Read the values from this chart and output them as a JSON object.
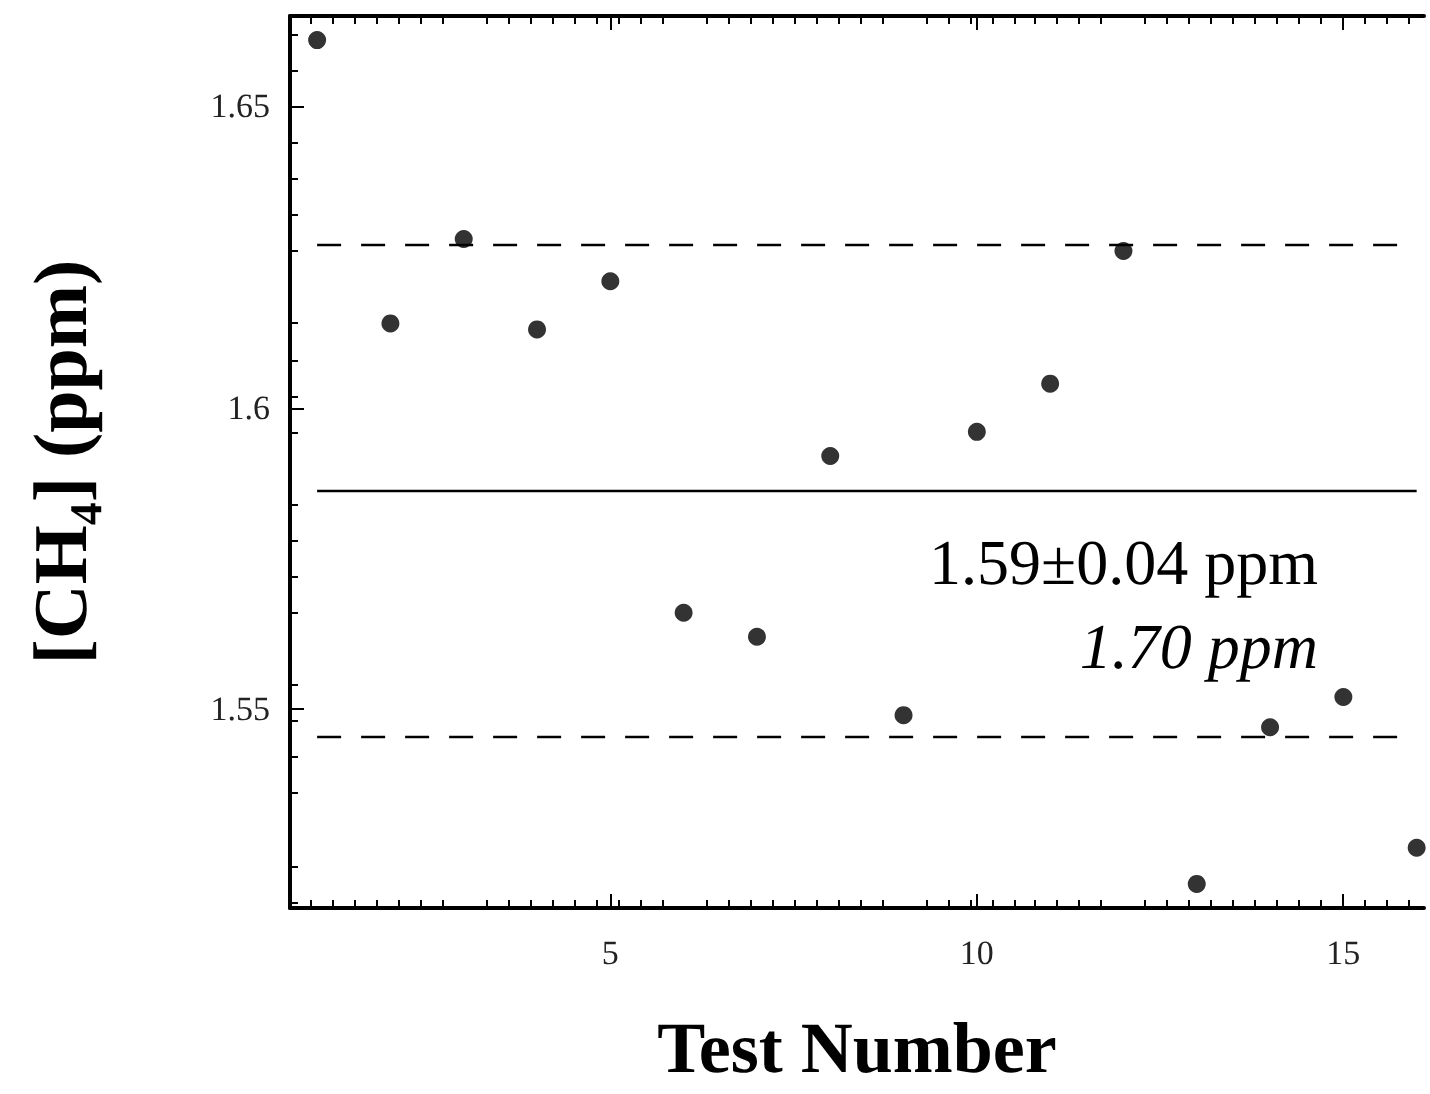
{
  "chart_data": {
    "type": "scatter",
    "xlabel": "Test Number",
    "ylabel": "[CH₄] (ppm)",
    "x": [
      1,
      2,
      3,
      4,
      5,
      6,
      7,
      8,
      9,
      10,
      11,
      12,
      13,
      14,
      15,
      16
    ],
    "values": [
      1.661,
      1.614,
      1.628,
      1.613,
      1.621,
      1.566,
      1.562,
      1.592,
      1.549,
      1.596,
      1.604,
      1.626,
      1.521,
      1.547,
      1.552,
      1.527
    ],
    "color": "#000000",
    "marker": "circle",
    "xlim": [
      0.63,
      16.1
    ],
    "xticks": [
      5,
      10,
      15
    ],
    "ylim": [
      1.517,
      1.665
    ],
    "yticks": [
      1.55,
      1.6,
      1.65
    ],
    "grid": false,
    "ref_lines": [
      {
        "axis": "y",
        "value": 1.5864,
        "line_style": "solid",
        "color": "#000000"
      },
      {
        "axis": "y",
        "value": 1.6272,
        "line_style": "dashed",
        "color": "#000000"
      },
      {
        "axis": "y",
        "value": 1.5454,
        "line_style": "dashed",
        "color": "#000000"
      }
    ],
    "annotations": [
      "1.59±0.04 ppm",
      "1.70 ppm"
    ]
  }
}
